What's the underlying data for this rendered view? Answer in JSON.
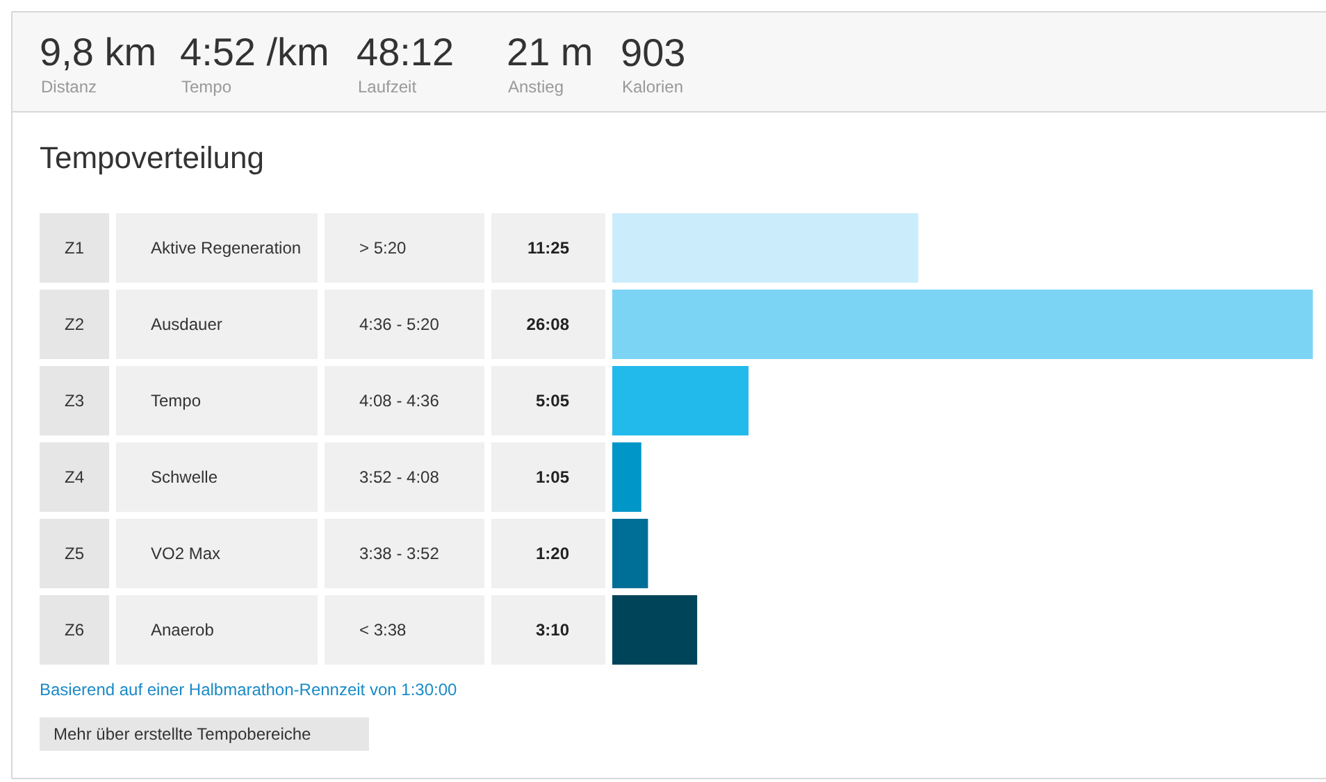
{
  "chart_data": {
    "type": "bar",
    "orientation": "horizontal",
    "title": "Tempoverteilung",
    "categories": [
      "Z1",
      "Z2",
      "Z3",
      "Z4",
      "Z5",
      "Z6"
    ],
    "values": [
      11.417,
      26.133,
      5.083,
      1.083,
      1.333,
      3.167
    ],
    "value_labels": [
      "11:25",
      "26:08",
      "5:05",
      "1:05",
      "1:20",
      "3:10"
    ],
    "colors": [
      "#cbedfb",
      "#7cd4f5",
      "#22b9eb",
      "#0096c8",
      "#006f97",
      "#00445a"
    ],
    "annotations": [
      "9,8 km",
      "Distanz",
      "4:52 /km",
      "Tempo",
      "48:12",
      "Laufzeit",
      "21 m",
      "Anstieg",
      "903",
      "Kalorien",
      "Aktive Regeneration",
      "> 5:20",
      "Ausdauer",
      "4:36 - 5:20",
      "Tempo",
      "4:08 - 4:36",
      "Schwelle",
      "3:52 - 4:08",
      "VO2 Max",
      "3:38 - 3:52",
      "Anaerob",
      "< 3:38",
      "Basierend auf einer Halbmarathon-Rennzeit von 1:30:00",
      "Mehr über erstellte Tempobereiche"
    ]
  }
}
